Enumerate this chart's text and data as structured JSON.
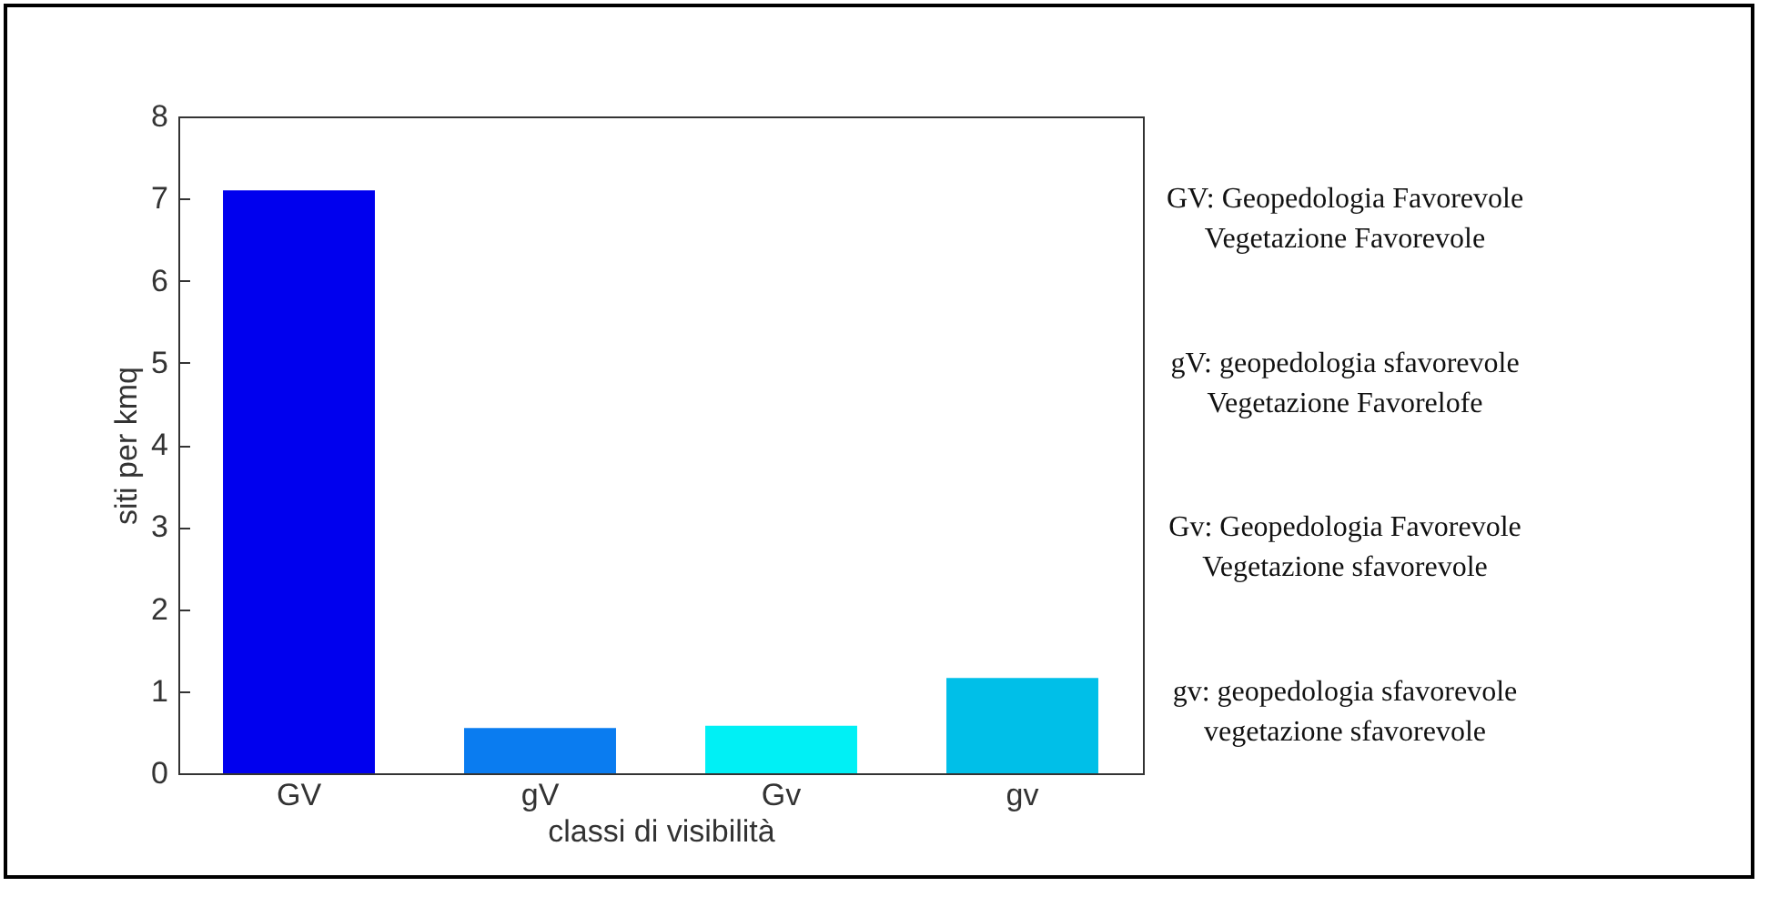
{
  "chart_data": {
    "type": "bar",
    "categories": [
      "GV",
      "gV",
      "Gv",
      "gv"
    ],
    "values": [
      7.1,
      0.55,
      0.58,
      1.16
    ],
    "colors": [
      "#0000ee",
      "#0a7cf0",
      "#00f0f5",
      "#00bfe8"
    ],
    "xlabel": "classi di visibilità",
    "ylabel": "siti per kmq",
    "ylim": [
      0,
      8
    ],
    "yticks": [
      0,
      1,
      2,
      3,
      4,
      5,
      6,
      7,
      8
    ],
    "grid": false,
    "annotations": [
      "GV: Geopedologia Favorevole\nVegetazione Favorevole",
      "gV: geopedologia sfavorevole\nVegetazione Favorelofe",
      "Gv: Geopedologia Favorevole\nVegetazione sfavorevole",
      "gv: geopedologia sfavorevole\nvegetazione sfavorevole"
    ]
  }
}
